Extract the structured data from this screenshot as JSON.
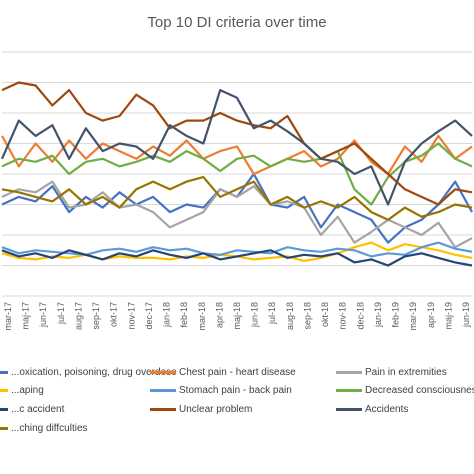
{
  "chart_data": {
    "type": "line",
    "title": "Top 10 DI criteria over time",
    "xlabel": "",
    "ylabel": "",
    "grid": true,
    "legend_position": "bottom",
    "categories": [
      "mar-17",
      "apr-17",
      "maj-17",
      "jun-17",
      "jul-17",
      "aug-17",
      "sep-17",
      "okt-17",
      "nov-17",
      "dec-17",
      "jan-18",
      "feb-18",
      "mar-18",
      "apr-18",
      "maj-18",
      "jun-18",
      "jul-18",
      "aug-18",
      "sep-18",
      "okt-18",
      "nov-18",
      "dec-18",
      "jan-19",
      "feb-19",
      "mar-19",
      "apr-19",
      "maj-19",
      "jun-19",
      "jul-19"
    ],
    "tick_labels": [
      "mar-17",
      "maj-17",
      "jun-17",
      "jul-17",
      "aug-17",
      "sep-17",
      "okt-17",
      "nov-17",
      "dec-17",
      "jan-18",
      "feb-18",
      "mar-18",
      "apr-18",
      "maj-18",
      "jun-18",
      "jul-18",
      "aug-18",
      "sep-18",
      "okt-18",
      "nov-18",
      "dec-18",
      "jan-19",
      "feb-19",
      "mar-19",
      "apr-19",
      "maj-19",
      "jun-19"
    ],
    "series": [
      {
        "name": "...oxication, poisoning, drug overdose",
        "color": "#4472c4",
        "values": [
          120,
          125,
          122,
          132,
          115,
          125,
          118,
          128,
          120,
          125,
          115,
          120,
          118,
          130,
          125,
          140,
          120,
          118,
          125,
          105,
          120,
          115,
          110,
          95,
          105,
          110,
          120,
          135,
          115
        ]
      },
      {
        "name": "Chest pain - heart disease",
        "color": "#ed7d31",
        "values": [
          165,
          145,
          160,
          148,
          162,
          150,
          160,
          155,
          150,
          158,
          152,
          162,
          150,
          155,
          158,
          140,
          145,
          150,
          155,
          145,
          150,
          162,
          148,
          140,
          158,
          148,
          165,
          150,
          158
        ]
      },
      {
        "name": "Pain in extremities",
        "color": "#a5a5a5",
        "values": [
          125,
          130,
          128,
          135,
          118,
          120,
          128,
          118,
          120,
          115,
          105,
          110,
          115,
          130,
          125,
          132,
          120,
          122,
          118,
          100,
          112,
          95,
          102,
          110,
          105,
          100,
          108,
          92,
          98
        ]
      },
      {
        "name": "...aping",
        "color": "#ffc000",
        "values": [
          88,
          85,
          84,
          86,
          85,
          87,
          84,
          86,
          85,
          85,
          84,
          86,
          85,
          87,
          86,
          84,
          85,
          86,
          83,
          85,
          88,
          92,
          95,
          90,
          94,
          92,
          90,
          87,
          85
        ]
      },
      {
        "name": "Stomach pain - back pain",
        "color": "#5b9bd5",
        "values": [
          92,
          88,
          90,
          89,
          88,
          87,
          90,
          91,
          89,
          92,
          90,
          91,
          88,
          87,
          90,
          89,
          88,
          92,
          90,
          89,
          91,
          90,
          86,
          88,
          87,
          92,
          95,
          91,
          89
        ]
      },
      {
        "name": "Decreased consciousness",
        "color": "#70ad47",
        "values": [
          145,
          150,
          148,
          152,
          140,
          148,
          150,
          145,
          148,
          152,
          148,
          155,
          150,
          142,
          150,
          152,
          145,
          150,
          148,
          150,
          155,
          130,
          120,
          138,
          148,
          152,
          160,
          150,
          145
        ]
      },
      {
        "name": "...c accident",
        "color": "#264478",
        "values": [
          90,
          86,
          88,
          85,
          90,
          87,
          84,
          88,
          86,
          90,
          87,
          85,
          88,
          84,
          86,
          88,
          90,
          85,
          87,
          86,
          88,
          82,
          84,
          80,
          86,
          88,
          85,
          82,
          80
        ]
      },
      {
        "name": "Unclear problem",
        "color": "#9e480e",
        "values": [
          195,
          200,
          198,
          185,
          195,
          180,
          175,
          178,
          192,
          185,
          170,
          175,
          175,
          180,
          175,
          172,
          170,
          178,
          160,
          150,
          155,
          160,
          150,
          140,
          130,
          125,
          120,
          130,
          128
        ]
      },
      {
        "name": "Accidents",
        "color": "#43546a",
        "values": [
          150,
          175,
          165,
          172,
          150,
          170,
          155,
          160,
          158,
          150,
          172,
          165,
          160,
          195,
          190,
          170,
          175,
          168,
          160,
          150,
          148,
          140,
          145,
          120,
          148,
          160,
          168,
          175,
          165
        ]
      },
      {
        "name": "...ching diffculties",
        "color": "#997300",
        "values": [
          130,
          128,
          125,
          122,
          130,
          120,
          125,
          118,
          130,
          135,
          130,
          135,
          138,
          125,
          130,
          135,
          120,
          125,
          118,
          122,
          118,
          125,
          115,
          110,
          118,
          112,
          115,
          120,
          118
        ]
      }
    ]
  }
}
